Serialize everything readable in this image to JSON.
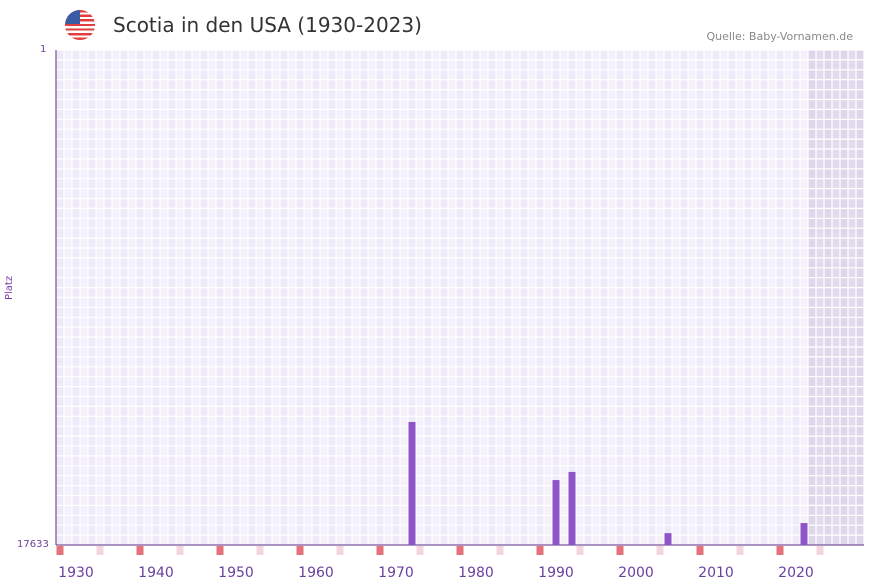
{
  "header": {
    "title": "Scotia in den USA (1930-2023)",
    "source": "Quelle: Baby-Vornamen.de",
    "flag_icon": "us-flag-icon"
  },
  "chart_data": {
    "type": "bar",
    "title": "Scotia in den USA (1930-2023)",
    "xlabel": "",
    "ylabel": "Platz",
    "xlim": [
      1928,
      2028
    ],
    "ylim": [
      17633,
      1
    ],
    "y_tick_labels": [
      "1",
      "17633"
    ],
    "x_tick_labels": [
      "1930",
      "1940",
      "1950",
      "1960",
      "1970",
      "1980",
      "1990",
      "2000",
      "2010",
      "2020"
    ],
    "x": [
      1972,
      1990,
      1992,
      2004,
      2021
    ],
    "values": [
      13250,
      15320,
      15030,
      17210,
      16850
    ],
    "shaded_from_year": 2022,
    "colors": {
      "bar": "#8e55c8",
      "decade_marker": "#e5717a",
      "half_decade_marker": "#f3d5df",
      "axis": "#5a2d82"
    }
  }
}
